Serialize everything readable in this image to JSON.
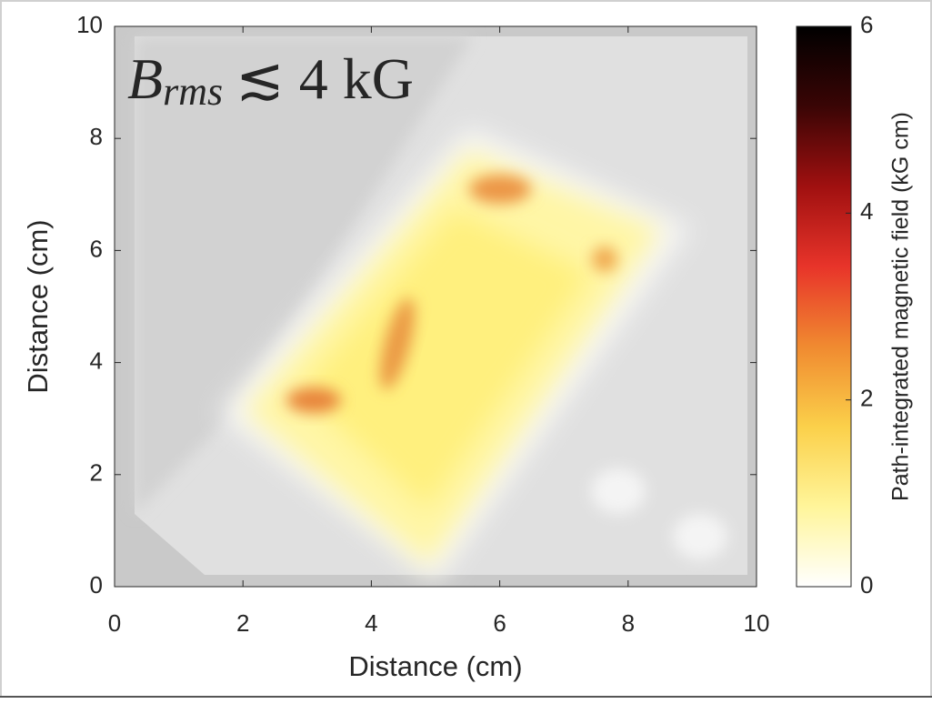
{
  "chart_data": {
    "type": "heatmap",
    "annotation": {
      "base": "B",
      "sub": "rms",
      "rest": "≲ 4 kG"
    },
    "x_label": "Distance (cm)",
    "y_label": "Distance (cm)",
    "xlim": [
      0,
      10
    ],
    "ylim": [
      0,
      10
    ],
    "xticks": [
      0,
      2,
      4,
      6,
      8,
      10
    ],
    "yticks": [
      0,
      2,
      4,
      6,
      8,
      10
    ],
    "colorbar": {
      "label": "Path-integrated magnetic field (kG cm)",
      "lim": [
        0,
        6
      ],
      "ticks": [
        0,
        2,
        4,
        6
      ],
      "colormap": [
        "#ffffff",
        "#fff59a",
        "#fbd04a",
        "#f08a30",
        "#e8342a",
        "#a01010",
        "#3a0505",
        "#000000"
      ]
    }
  }
}
